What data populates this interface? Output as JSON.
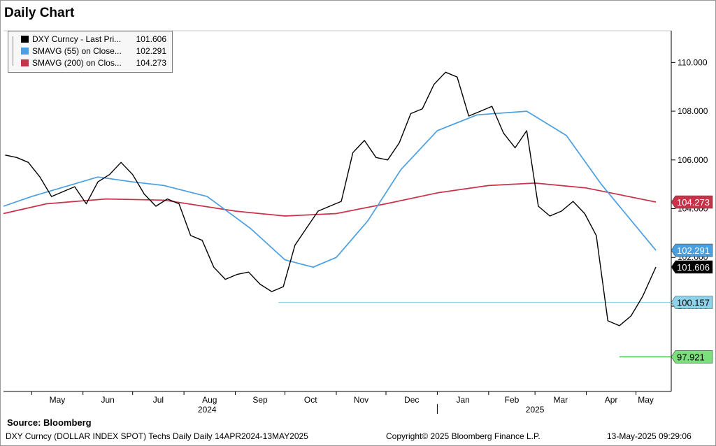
{
  "page": {
    "title": "Daily Chart",
    "source": "Source:  Bloomberg",
    "footer_left": "DXY Curncy (DOLLAR INDEX SPOT) Techs Daily  Daily 14APR2024-13MAY2025",
    "footer_mid": "Copyright© 2025 Bloomberg Finance L.P.",
    "footer_right": "13-May-2025 09:29:06"
  },
  "colors": {
    "price": "#000000",
    "sma55": "#4a9fe0",
    "sma200": "#c8334a",
    "support_line": "#8fd3ea",
    "support_tag": "#8fd3ea",
    "low_line": "#39c23a",
    "low_tag": "#7be07b"
  },
  "legend": [
    {
      "name": "DXY Curncy - Last Pri...",
      "value": "101.606",
      "color": "#000000"
    },
    {
      "name": "SMAVG (55)  on Close...",
      "value": "102.291",
      "color": "#4a9fe0"
    },
    {
      "name": "SMAVG (200)  on Clos...",
      "value": "104.273",
      "color": "#c8334a"
    }
  ],
  "chart_data": {
    "type": "line",
    "y_ticks": [
      "110.000",
      "108.000",
      "106.000",
      "104.000",
      "102.000",
      "100.000"
    ],
    "ylim": [
      96.5,
      111.3
    ],
    "x_range": [
      "2024-04-14",
      "2025-05-13"
    ],
    "x_ticks": [
      {
        "date": "2024-05-01",
        "label": "May"
      },
      {
        "date": "2024-06-01",
        "label": "Jun"
      },
      {
        "date": "2024-07-01",
        "label": "Jul"
      },
      {
        "date": "2024-08-01",
        "label": "Aug"
      },
      {
        "date": "2024-09-01",
        "label": "Sep"
      },
      {
        "date": "2024-10-01",
        "label": "Oct"
      },
      {
        "date": "2024-11-01",
        "label": "Nov"
      },
      {
        "date": "2024-12-01",
        "label": "Dec"
      },
      {
        "date": "2025-01-01",
        "label": "Jan"
      },
      {
        "date": "2025-02-01",
        "label": "Feb"
      },
      {
        "date": "2025-03-01",
        "label": "Mar"
      },
      {
        "date": "2025-04-01",
        "label": "Apr"
      },
      {
        "date": "2025-05-01",
        "label": "May"
      }
    ],
    "year_labels": [
      {
        "date": "2024-08-15",
        "label": "2024"
      },
      {
        "date": "2025-03-01",
        "label": "2025"
      }
    ],
    "year_divider": "2025-01-01",
    "series": [
      {
        "name": "DXY Curncy - Last Pri...",
        "points": [
          [
            "2024-04-15",
            106.2
          ],
          [
            "2024-04-22",
            106.1
          ],
          [
            "2024-04-29",
            105.9
          ],
          [
            "2024-05-06",
            105.3
          ],
          [
            "2024-05-13",
            104.5
          ],
          [
            "2024-05-20",
            104.7
          ],
          [
            "2024-05-27",
            104.9
          ],
          [
            "2024-06-03",
            104.2
          ],
          [
            "2024-06-10",
            105.1
          ],
          [
            "2024-06-17",
            105.4
          ],
          [
            "2024-06-24",
            105.9
          ],
          [
            "2024-07-01",
            105.4
          ],
          [
            "2024-07-08",
            104.6
          ],
          [
            "2024-07-15",
            104.1
          ],
          [
            "2024-07-22",
            104.4
          ],
          [
            "2024-07-29",
            104.2
          ],
          [
            "2024-08-05",
            102.9
          ],
          [
            "2024-08-12",
            102.7
          ],
          [
            "2024-08-19",
            101.6
          ],
          [
            "2024-08-26",
            101.1
          ],
          [
            "2024-09-02",
            101.3
          ],
          [
            "2024-09-09",
            101.4
          ],
          [
            "2024-09-16",
            100.9
          ],
          [
            "2024-09-23",
            100.6
          ],
          [
            "2024-09-30",
            100.8
          ],
          [
            "2024-10-07",
            102.5
          ],
          [
            "2024-10-14",
            103.2
          ],
          [
            "2024-10-21",
            103.9
          ],
          [
            "2024-10-28",
            104.1
          ],
          [
            "2024-11-04",
            104.3
          ],
          [
            "2024-11-11",
            106.3
          ],
          [
            "2024-11-18",
            106.8
          ],
          [
            "2024-11-25",
            106.1
          ],
          [
            "2024-12-02",
            106.0
          ],
          [
            "2024-12-09",
            106.7
          ],
          [
            "2024-12-16",
            107.9
          ],
          [
            "2024-12-23",
            108.1
          ],
          [
            "2024-12-30",
            109.1
          ],
          [
            "2025-01-06",
            109.6
          ],
          [
            "2025-01-13",
            109.4
          ],
          [
            "2025-01-20",
            107.8
          ],
          [
            "2025-01-27",
            108.0
          ],
          [
            "2025-02-03",
            108.2
          ],
          [
            "2025-02-10",
            107.1
          ],
          [
            "2025-02-17",
            106.5
          ],
          [
            "2025-02-24",
            107.2
          ],
          [
            "2025-03-03",
            104.1
          ],
          [
            "2025-03-10",
            103.7
          ],
          [
            "2025-03-17",
            103.9
          ],
          [
            "2025-03-24",
            104.3
          ],
          [
            "2025-03-31",
            103.8
          ],
          [
            "2025-04-07",
            102.9
          ],
          [
            "2025-04-14",
            99.4
          ],
          [
            "2025-04-21",
            99.2
          ],
          [
            "2025-04-28",
            99.6
          ],
          [
            "2025-05-05",
            100.4
          ],
          [
            "2025-05-13",
            101.606
          ]
        ]
      },
      {
        "name": "SMAVG (55)  on Close...",
        "points": [
          [
            "2024-04-14",
            104.1
          ],
          [
            "2024-05-01",
            104.5
          ],
          [
            "2024-06-10",
            105.3
          ],
          [
            "2024-07-01",
            105.1
          ],
          [
            "2024-07-20",
            104.95
          ],
          [
            "2024-08-15",
            104.5
          ],
          [
            "2024-09-10",
            103.2
          ],
          [
            "2024-10-01",
            101.9
          ],
          [
            "2024-10-18",
            101.6
          ],
          [
            "2024-11-01",
            102.0
          ],
          [
            "2024-11-20",
            103.5
          ],
          [
            "2024-12-10",
            105.6
          ],
          [
            "2025-01-01",
            107.2
          ],
          [
            "2025-01-25",
            107.85
          ],
          [
            "2025-02-24",
            108.0
          ],
          [
            "2025-03-20",
            107.0
          ],
          [
            "2025-04-10",
            105.0
          ],
          [
            "2025-05-13",
            102.291
          ]
        ]
      },
      {
        "name": "SMAVG (200)  on Clos...",
        "points": [
          [
            "2024-04-14",
            103.8
          ],
          [
            "2024-05-10",
            104.2
          ],
          [
            "2024-06-15",
            104.4
          ],
          [
            "2024-07-20",
            104.35
          ],
          [
            "2024-09-01",
            103.9
          ],
          [
            "2024-10-01",
            103.7
          ],
          [
            "2024-11-01",
            103.8
          ],
          [
            "2024-12-01",
            104.2
          ],
          [
            "2025-01-01",
            104.65
          ],
          [
            "2025-02-01",
            104.95
          ],
          [
            "2025-03-01",
            105.05
          ],
          [
            "2025-04-01",
            104.85
          ],
          [
            "2025-05-13",
            104.273
          ]
        ]
      }
    ],
    "levels": [
      {
        "value": 100.157,
        "from": "2024-09-27",
        "to": "2025-05-13"
      },
      {
        "value": 97.921,
        "from": "2025-04-21",
        "to": "2025-05-13"
      }
    ],
    "tags": [
      {
        "value": 104.273,
        "label": "104.273"
      },
      {
        "value": 102.291,
        "label": "102.291"
      },
      {
        "value": 101.606,
        "label": "101.606"
      },
      {
        "value": 100.157,
        "label": "100.157"
      },
      {
        "value": 97.921,
        "label": "97.921"
      }
    ],
    "grid": false,
    "legend_position": "top-left"
  }
}
